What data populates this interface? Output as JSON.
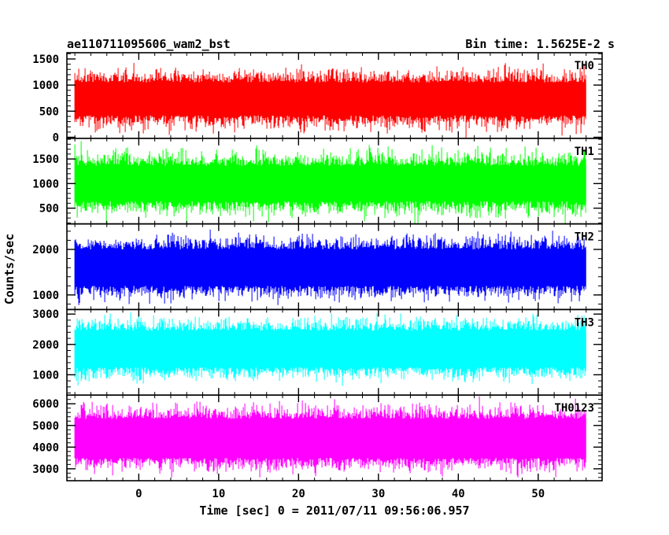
{
  "chart_data": {
    "type": "line",
    "title_left": "ae110711095606_wam2_bst",
    "title_right": "Bin time: 1.5625E-2 s",
    "xlabel": "Time [sec] 0 = 2011/07/11 09:56:06.957",
    "ylabel": "Counts/sec",
    "xlim": [
      -9,
      58
    ],
    "x_ticks": [
      0,
      10,
      20,
      30,
      40,
      50
    ],
    "x_range": [
      -8,
      56
    ],
    "panels": [
      {
        "name": "TH0",
        "color": "#ff0000",
        "ylim": [
          -20,
          1620
        ],
        "y_ticks": [
          0,
          500,
          1000,
          1500
        ],
        "band": [
          420,
          1050
        ],
        "spread": 230
      },
      {
        "name": "TH1",
        "color": "#00ff00",
        "ylim": [
          180,
          1920
        ],
        "y_ticks": [
          500,
          1000,
          1500
        ],
        "band": [
          640,
          1360
        ],
        "spread": 270
      },
      {
        "name": "TH2",
        "color": "#0000ff",
        "ylim": [
          680,
          2560
        ],
        "y_ticks": [
          1000,
          2000
        ],
        "band": [
          1200,
          2000
        ],
        "spread": 260
      },
      {
        "name": "TH3",
        "color": "#00ffff",
        "ylim": [
          330,
          3150
        ],
        "y_ticks": [
          1000,
          2000,
          3000
        ],
        "band": [
          1250,
          2450
        ],
        "spread": 380
      },
      {
        "name": "TH0123",
        "color": "#ff00ff",
        "ylim": [
          2450,
          6400
        ],
        "y_ticks": [
          3000,
          4000,
          5000,
          6000
        ],
        "band": [
          3500,
          5300
        ],
        "spread": 560
      }
    ]
  }
}
